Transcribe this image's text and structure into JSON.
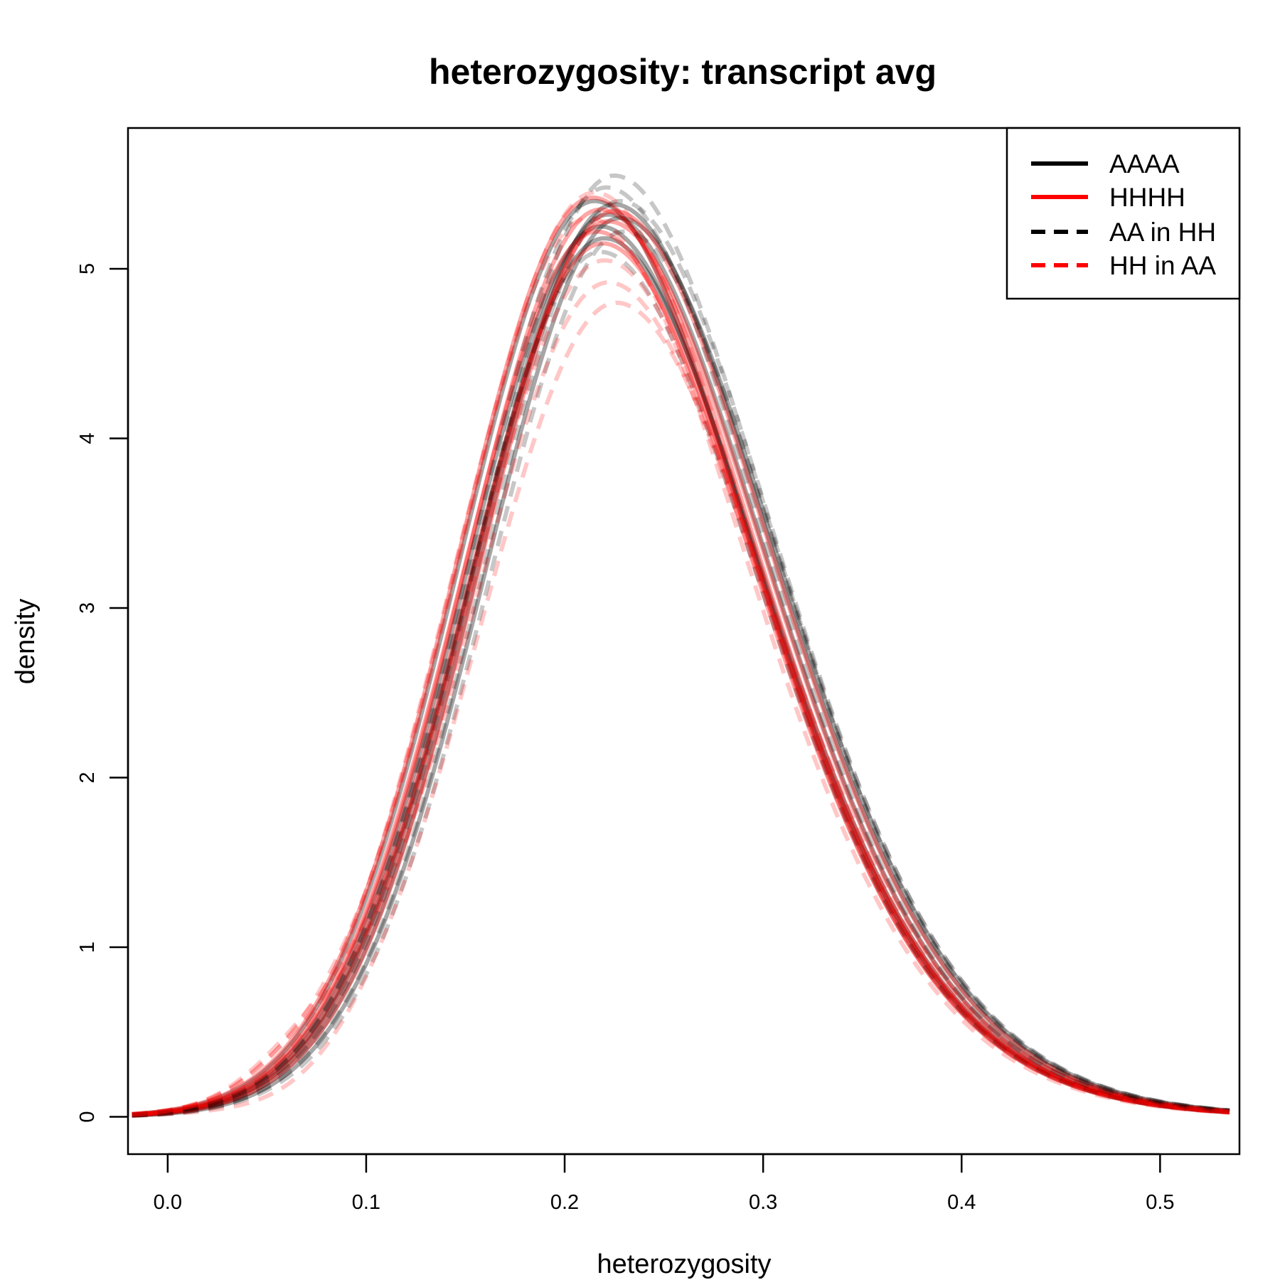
{
  "chart_data": {
    "type": "line",
    "title": "heterozygosity: transcript avg",
    "xlabel": "heterozygosity",
    "ylabel": "density",
    "xlim": [
      -0.02,
      0.54
    ],
    "ylim": [
      -0.22,
      5.83
    ],
    "x_ticks": [
      "0.0",
      "0.1",
      "0.2",
      "0.3",
      "0.4",
      "0.5"
    ],
    "y_ticks": [
      "0",
      "1",
      "2",
      "3",
      "4",
      "5"
    ],
    "grid": false,
    "legend_position": "top-right",
    "legend": [
      {
        "label": "AAAA",
        "color": "#000000",
        "style": "solid"
      },
      {
        "label": "HHHH",
        "color": "#ff0000",
        "style": "solid"
      },
      {
        "label": "AA in HH",
        "color": "#000000",
        "style": "dashed"
      },
      {
        "label": "HH in AA",
        "color": "#ff0000",
        "style": "dashed"
      }
    ],
    "series": [
      {
        "group": "AAAA",
        "color": "#000000",
        "style": "solid",
        "peak_x": 0.222,
        "peak_y": 5.32
      },
      {
        "group": "AAAA",
        "color": "#000000",
        "style": "solid",
        "peak_x": 0.218,
        "peak_y": 5.25
      },
      {
        "group": "AAAA",
        "color": "#000000",
        "style": "solid",
        "peak_x": 0.225,
        "peak_y": 5.38
      },
      {
        "group": "AAAA",
        "color": "#000000",
        "style": "solid",
        "peak_x": 0.22,
        "peak_y": 5.18
      },
      {
        "group": "AAAA",
        "color": "#000000",
        "style": "solid",
        "peak_x": 0.228,
        "peak_y": 5.3
      },
      {
        "group": "AAAA",
        "color": "#000000",
        "style": "solid",
        "peak_x": 0.215,
        "peak_y": 5.4
      },
      {
        "group": "HHHH",
        "color": "#ff0000",
        "style": "solid",
        "peak_x": 0.218,
        "peak_y": 5.35
      },
      {
        "group": "HHHH",
        "color": "#ff0000",
        "style": "solid",
        "peak_x": 0.214,
        "peak_y": 5.42
      },
      {
        "group": "HHHH",
        "color": "#ff0000",
        "style": "solid",
        "peak_x": 0.222,
        "peak_y": 5.28
      },
      {
        "group": "HHHH",
        "color": "#ff0000",
        "style": "solid",
        "peak_x": 0.219,
        "peak_y": 5.15
      },
      {
        "group": "HHHH",
        "color": "#ff0000",
        "style": "solid",
        "peak_x": 0.225,
        "peak_y": 5.34
      },
      {
        "group": "HHHH",
        "color": "#ff0000",
        "style": "solid",
        "peak_x": 0.216,
        "peak_y": 5.22
      },
      {
        "group": "AA in HH",
        "color": "#000000",
        "style": "dashed",
        "peak_x": 0.225,
        "peak_y": 5.55
      },
      {
        "group": "AA in HH",
        "color": "#000000",
        "style": "dashed",
        "peak_x": 0.221,
        "peak_y": 5.48
      },
      {
        "group": "AA in HH",
        "color": "#000000",
        "style": "dashed",
        "peak_x": 0.228,
        "peak_y": 5.4
      },
      {
        "group": "AA in HH",
        "color": "#000000",
        "style": "dashed",
        "peak_x": 0.218,
        "peak_y": 5.1
      },
      {
        "group": "AA in HH",
        "color": "#000000",
        "style": "dashed",
        "peak_x": 0.23,
        "peak_y": 5.22
      },
      {
        "group": "HH in AA",
        "color": "#ff0000",
        "style": "dashed",
        "peak_x": 0.222,
        "peak_y": 4.92
      },
      {
        "group": "HH in AA",
        "color": "#ff0000",
        "style": "dashed",
        "peak_x": 0.226,
        "peak_y": 4.8
      },
      {
        "group": "HH in AA",
        "color": "#ff0000",
        "style": "dashed",
        "peak_x": 0.215,
        "peak_y": 5.45
      },
      {
        "group": "HH in AA",
        "color": "#ff0000",
        "style": "dashed",
        "peak_x": 0.22,
        "peak_y": 5.05
      },
      {
        "group": "HH in AA",
        "color": "#ff0000",
        "style": "dashed",
        "peak_x": 0.212,
        "peak_y": 5.3
      }
    ]
  }
}
